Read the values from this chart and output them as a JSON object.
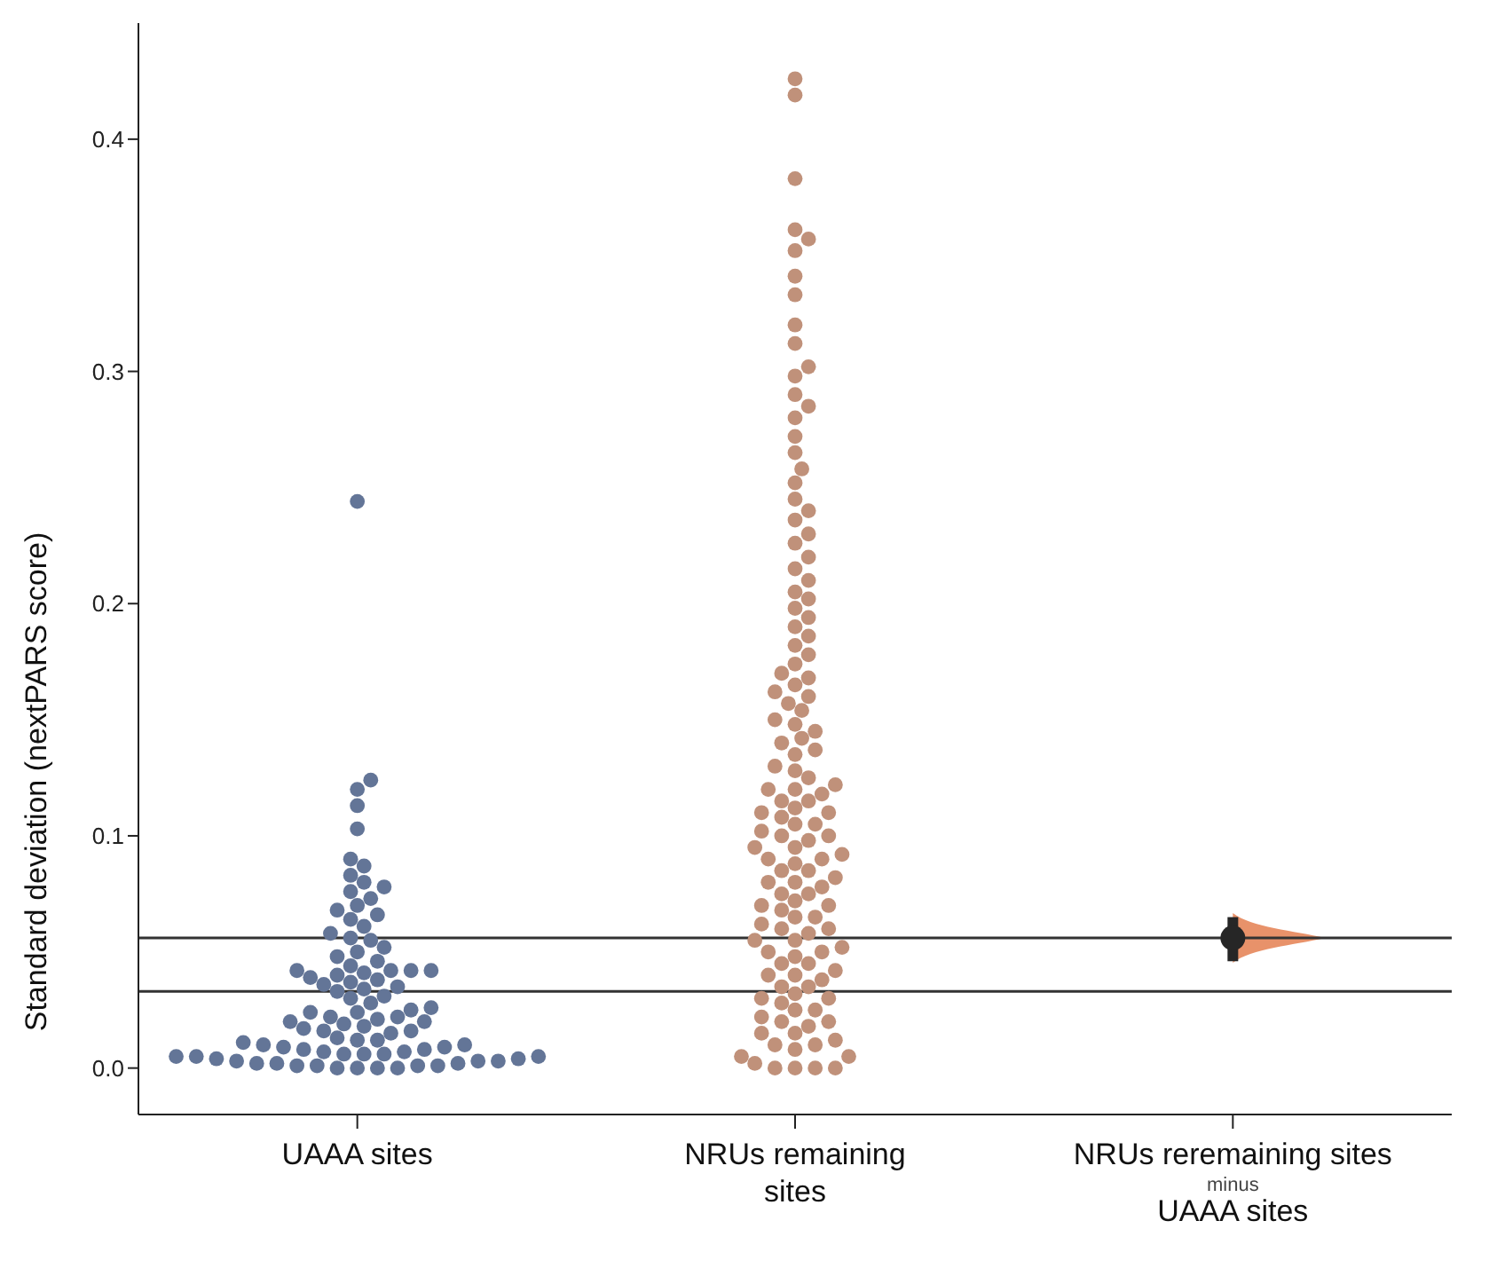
{
  "chart_data": {
    "type": "scatter",
    "ylabel": "Standard deviation (nextPARS score)",
    "categories": [
      "UAAA sites",
      "NRUs remaining\nsites",
      "NRUs reremaining sites\n$_{minus}$\nUAAA sites"
    ],
    "ylim": [
      -0.02,
      0.45
    ],
    "yticks": [
      {
        "value": 0,
        "label": "0.0"
      },
      {
        "value": 0.1,
        "label": "0.1"
      },
      {
        "value": 0.2,
        "label": "0.2"
      },
      {
        "value": 0.3,
        "label": "0.3"
      },
      {
        "value": 0.4,
        "label": "0.4"
      }
    ],
    "grid": false,
    "legend": false,
    "marker": "circle",
    "series": [
      {
        "color": "#637597",
        "x": [
          "UAAA sites",
          "UAAA sites",
          "UAAA sites",
          "UAAA sites",
          "UAAA sites",
          "UAAA sites",
          "UAAA sites",
          "UAAA sites",
          "UAAA sites",
          "UAAA sites",
          "UAAA sites",
          "UAAA sites",
          "UAAA sites",
          "UAAA sites",
          "UAAA sites",
          "UAAA sites",
          "UAAA sites",
          "UAAA sites",
          "UAAA sites",
          "UAAA sites",
          "UAAA sites",
          "UAAA sites",
          "UAAA sites",
          "UAAA sites",
          "UAAA sites",
          "UAAA sites",
          "UAAA sites",
          "UAAA sites",
          "UAAA sites",
          "UAAA sites",
          "UAAA sites",
          "UAAA sites",
          "UAAA sites",
          "UAAA sites",
          "UAAA sites",
          "UAAA sites",
          "UAAA sites",
          "UAAA sites",
          "UAAA sites",
          "UAAA sites",
          "UAAA sites",
          "UAAA sites",
          "UAAA sites",
          "UAAA sites",
          "UAAA sites",
          "UAAA sites",
          "UAAA sites",
          "UAAA sites",
          "UAAA sites",
          "UAAA sites",
          "UAAA sites",
          "UAAA sites",
          "UAAA sites",
          "UAAA sites",
          "UAAA sites",
          "UAAA sites",
          "UAAA sites",
          "UAAA sites",
          "UAAA sites",
          "UAAA sites",
          "UAAA sites",
          "UAAA sites",
          "UAAA sites",
          "UAAA sites",
          "UAAA sites",
          "UAAA sites",
          "UAAA sites",
          "UAAA sites",
          "UAAA sites",
          "UAAA sites",
          "UAAA sites",
          "UAAA sites",
          "UAAA sites",
          "UAAA sites",
          "UAAA sites",
          "UAAA sites",
          "UAAA sites",
          "UAAA sites",
          "UAAA sites",
          "UAAA sites",
          "UAAA sites",
          "UAAA sites",
          "UAAA sites",
          "UAAA sites",
          "UAAA sites",
          "UAAA sites",
          "UAAA sites",
          "UAAA sites",
          "UAAA sites",
          "UAAA sites"
        ],
        "values": [
          0.244,
          0.124,
          0.12,
          0.113,
          0.103,
          0.09,
          0.087,
          0.083,
          0.08,
          0.078,
          0.076,
          0.073,
          0.07,
          0.068,
          0.066,
          0.064,
          0.061,
          0.058,
          0.056,
          0.055,
          0.052,
          0.05,
          0.048,
          0.046,
          0.044,
          0.042,
          0.042,
          0.042,
          0.042,
          0.041,
          0.04,
          0.039,
          0.038,
          0.037,
          0.036,
          0.035,
          0.034,
          0.033,
          0.031,
          0.03,
          0.028,
          0.026,
          0.025,
          0.024,
          0.024,
          0.022,
          0.022,
          0.021,
          0.02,
          0.02,
          0.019,
          0.018,
          0.017,
          0.016,
          0.016,
          0.015,
          0.013,
          0.012,
          0.012,
          0.011,
          0.01,
          0.01,
          0.009,
          0.009,
          0.008,
          0.008,
          0.007,
          0.007,
          0.006,
          0.006,
          0.006,
          0.005,
          0.005,
          0.005,
          0.004,
          0.004,
          0.003,
          0.003,
          0.003,
          0.002,
          0.002,
          0.002,
          0.001,
          0.001,
          0.001,
          0.001,
          0.0,
          0.0,
          0.0,
          0.0
        ]
      },
      {
        "color": "#c0917a",
        "x": [
          "NRUs remaining\nsites",
          "NRUs remaining\nsites",
          "NRUs remaining\nsites",
          "NRUs remaining\nsites",
          "NRUs remaining\nsites",
          "NRUs remaining\nsites",
          "NRUs remaining\nsites",
          "NRUs remaining\nsites",
          "NRUs remaining\nsites",
          "NRUs remaining\nsites",
          "NRUs remaining\nsites",
          "NRUs remaining\nsites",
          "NRUs remaining\nsites",
          "NRUs remaining\nsites",
          "NRUs remaining\nsites",
          "NRUs remaining\nsites",
          "NRUs remaining\nsites",
          "NRUs remaining\nsites",
          "NRUs remaining\nsites",
          "NRUs remaining\nsites",
          "NRUs remaining\nsites",
          "NRUs remaining\nsites",
          "NRUs remaining\nsites",
          "NRUs remaining\nsites",
          "NRUs remaining\nsites",
          "NRUs remaining\nsites",
          "NRUs remaining\nsites",
          "NRUs remaining\nsites",
          "NRUs remaining\nsites",
          "NRUs remaining\nsites",
          "NRUs remaining\nsites",
          "NRUs remaining\nsites",
          "NRUs remaining\nsites",
          "NRUs remaining\nsites",
          "NRUs remaining\nsites",
          "NRUs remaining\nsites",
          "NRUs remaining\nsites",
          "NRUs remaining\nsites",
          "NRUs remaining\nsites",
          "NRUs remaining\nsites",
          "NRUs remaining\nsites",
          "NRUs remaining\nsites",
          "NRUs remaining\nsites",
          "NRUs remaining\nsites",
          "NRUs remaining\nsites",
          "NRUs remaining\nsites",
          "NRUs remaining\nsites",
          "NRUs remaining\nsites",
          "NRUs remaining\nsites",
          "NRUs remaining\nsites",
          "NRUs remaining\nsites",
          "NRUs remaining\nsites",
          "NRUs remaining\nsites",
          "NRUs remaining\nsites",
          "NRUs remaining\nsites",
          "NRUs remaining\nsites",
          "NRUs remaining\nsites",
          "NRUs remaining\nsites",
          "NRUs remaining\nsites",
          "NRUs remaining\nsites",
          "NRUs remaining\nsites",
          "NRUs remaining\nsites",
          "NRUs remaining\nsites",
          "NRUs remaining\nsites",
          "NRUs remaining\nsites",
          "NRUs remaining\nsites",
          "NRUs remaining\nsites",
          "NRUs remaining\nsites",
          "NRUs remaining\nsites",
          "NRUs remaining\nsites",
          "NRUs remaining\nsites",
          "NRUs remaining\nsites",
          "NRUs remaining\nsites",
          "NRUs remaining\nsites",
          "NRUs remaining\nsites",
          "NRUs remaining\nsites",
          "NRUs remaining\nsites",
          "NRUs remaining\nsites",
          "NRUs remaining\nsites",
          "NRUs remaining\nsites",
          "NRUs remaining\nsites",
          "NRUs remaining\nsites",
          "NRUs remaining\nsites",
          "NRUs remaining\nsites",
          "NRUs remaining\nsites",
          "NRUs remaining\nsites",
          "NRUs remaining\nsites",
          "NRUs remaining\nsites",
          "NRUs remaining\nsites",
          "NRUs remaining\nsites",
          "NRUs remaining\nsites",
          "NRUs remaining\nsites",
          "NRUs remaining\nsites",
          "NRUs remaining\nsites",
          "NRUs remaining\nsites",
          "NRUs remaining\nsites",
          "NRUs remaining\nsites",
          "NRUs remaining\nsites",
          "NRUs remaining\nsites",
          "NRUs remaining\nsites",
          "NRUs remaining\nsites",
          "NRUs remaining\nsites",
          "NRUs remaining\nsites",
          "NRUs remaining\nsites",
          "NRUs remaining\nsites",
          "NRUs remaining\nsites",
          "NRUs remaining\nsites",
          "NRUs remaining\nsites",
          "NRUs remaining\nsites",
          "NRUs remaining\nsites",
          "NRUs remaining\nsites",
          "NRUs remaining\nsites",
          "NRUs remaining\nsites",
          "NRUs remaining\nsites",
          "NRUs remaining\nsites",
          "NRUs remaining\nsites",
          "NRUs remaining\nsites",
          "NRUs remaining\nsites",
          "NRUs remaining\nsites",
          "NRUs remaining\nsites",
          "NRUs remaining\nsites",
          "NRUs remaining\nsites",
          "NRUs remaining\nsites",
          "NRUs remaining\nsites",
          "NRUs remaining\nsites",
          "NRUs remaining\nsites",
          "NRUs remaining\nsites",
          "NRUs remaining\nsites",
          "NRUs remaining\nsites",
          "NRUs remaining\nsites"
        ],
        "values": [
          0.426,
          0.419,
          0.383,
          0.361,
          0.357,
          0.352,
          0.341,
          0.333,
          0.32,
          0.312,
          0.302,
          0.298,
          0.29,
          0.285,
          0.28,
          0.272,
          0.265,
          0.258,
          0.252,
          0.245,
          0.24,
          0.236,
          0.23,
          0.226,
          0.22,
          0.215,
          0.21,
          0.205,
          0.202,
          0.198,
          0.194,
          0.19,
          0.186,
          0.182,
          0.178,
          0.174,
          0.17,
          0.168,
          0.165,
          0.162,
          0.16,
          0.157,
          0.154,
          0.15,
          0.148,
          0.145,
          0.142,
          0.14,
          0.137,
          0.135,
          0.12,
          0.11,
          0.1,
          0.09,
          0.08,
          0.07,
          0.06,
          0.05,
          0.04,
          0.03,
          0.02,
          0.01,
          0.0,
          0.118,
          0.108,
          0.098,
          0.088,
          0.078,
          0.068,
          0.058,
          0.048,
          0.038,
          0.028,
          0.018,
          0.008,
          0.115,
          0.105,
          0.095,
          0.085,
          0.075,
          0.065,
          0.055,
          0.045,
          0.035,
          0.025,
          0.015,
          0.005,
          0.112,
          0.102,
          0.092,
          0.082,
          0.072,
          0.062,
          0.052,
          0.042,
          0.032,
          0.022,
          0.012,
          0.002,
          0.12,
          0.11,
          0.1,
          0.09,
          0.08,
          0.07,
          0.06,
          0.05,
          0.04,
          0.03,
          0.02,
          0.01,
          0.0,
          0.115,
          0.105,
          0.095,
          0.085,
          0.075,
          0.065,
          0.055,
          0.045,
          0.035,
          0.025,
          0.015,
          0.005,
          0.13,
          0.128,
          0.125,
          0.122,
          0.0,
          0.0
        ]
      },
      {
        "color": "#262626",
        "x": [
          "NRUs reremaining sites\n$_{minus}$\nUAAA sites"
        ],
        "values": [
          0.056
        ],
        "errors": [
          [
            0.046,
            0.065
          ]
        ]
      }
    ],
    "ref_lines": [
      {
        "axis": "y",
        "value": 0.033,
        "color": "#333333"
      },
      {
        "axis": "y",
        "value": 0.056,
        "color": "#333333"
      }
    ]
  }
}
